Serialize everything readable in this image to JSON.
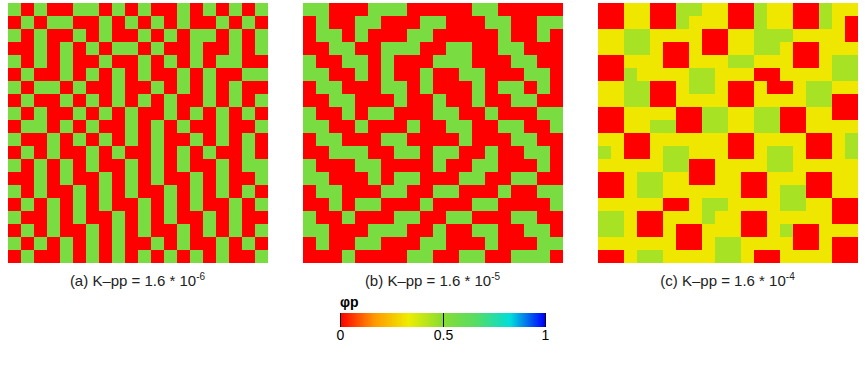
{
  "chart_data": [
    {
      "type": "heatmap",
      "title": "(a) K–pp = 1.6 * 10",
      "title_superscript": "-6",
      "cells": [
        [
          0.55,
          0,
          0.55,
          0,
          0,
          0.55,
          0.55,
          0,
          0.55,
          0,
          0.55,
          0,
          0,
          0.55,
          0,
          0.55,
          0,
          0.55,
          0,
          0.55
        ],
        [
          0,
          0.55,
          0,
          0.55,
          0.55,
          0,
          0,
          0.55,
          0,
          0.55,
          0,
          0.55,
          0,
          0.55,
          0,
          0,
          0.55,
          0,
          0.55,
          0
        ],
        [
          0.55,
          0,
          0.55,
          0,
          0,
          0.55,
          0,
          0.55,
          0,
          0,
          0.55,
          0,
          0.55,
          0,
          0.55,
          0.55,
          0,
          0.55,
          0,
          0.55
        ],
        [
          0,
          0,
          0.55,
          0,
          0.55,
          0,
          0.55,
          0,
          0.55,
          0.55,
          0,
          0.55,
          0,
          0,
          0.55,
          0,
          0,
          0.55,
          0,
          0.55
        ],
        [
          0.55,
          0,
          0.55,
          0,
          0.55,
          0,
          0,
          0.55,
          0,
          0,
          0.55,
          0,
          0.55,
          0,
          0.55,
          0,
          0.55,
          0.55,
          0,
          0
        ],
        [
          0,
          0.55,
          0,
          0,
          0.55,
          0,
          0.55,
          0,
          0.55,
          0,
          0.55,
          0,
          0,
          0.55,
          0,
          0.55,
          0,
          0,
          0.55,
          0.55
        ],
        [
          0.55,
          0,
          0.55,
          0.55,
          0,
          0.55,
          0,
          0,
          0.55,
          0,
          0,
          0.55,
          0,
          0.55,
          0,
          0.55,
          0,
          0.55,
          0,
          0
        ],
        [
          0,
          0.55,
          0,
          0,
          0.55,
          0,
          0.55,
          0,
          0.55,
          0,
          0.55,
          0,
          0.55,
          0,
          0,
          0.55,
          0,
          0.55,
          0,
          0.55
        ],
        [
          0.55,
          0,
          0.55,
          0,
          0,
          0.55,
          0,
          0.55,
          0,
          0.55,
          0,
          0,
          0.55,
          0,
          0.55,
          0,
          0.55,
          0,
          0.55,
          0
        ],
        [
          0,
          0.55,
          0.55,
          0,
          0.55,
          0,
          0.55,
          0,
          0,
          0.55,
          0,
          0.55,
          0,
          0.55,
          0,
          0,
          0.55,
          0,
          0,
          0.55
        ],
        [
          0.55,
          0,
          0,
          0.55,
          0,
          0.55,
          0,
          0.55,
          0,
          0.55,
          0,
          0.55,
          0,
          0,
          0.55,
          0,
          0.55,
          0,
          0.55,
          0
        ],
        [
          0,
          0.55,
          0,
          0.55,
          0,
          0,
          0.55,
          0,
          0.55,
          0,
          0,
          0.55,
          0,
          0.55,
          0,
          0.55,
          0,
          0,
          0.55,
          0
        ],
        [
          0.55,
          0,
          0.55,
          0,
          0.55,
          0,
          0.55,
          0,
          0,
          0.55,
          0,
          0.55,
          0,
          0.55,
          0,
          0,
          0.55,
          0,
          0.55,
          0.55
        ],
        [
          0,
          0,
          0.55,
          0,
          0.55,
          0,
          0,
          0.55,
          0,
          0.55,
          0,
          0.55,
          0,
          0,
          0.55,
          0,
          0.55,
          0,
          0,
          0.55
        ],
        [
          0.55,
          0,
          0.55,
          0,
          0,
          0.55,
          0,
          0.55,
          0,
          0.55,
          0,
          0,
          0.55,
          0,
          0.55,
          0,
          0.55,
          0,
          0.55,
          0
        ],
        [
          0,
          0.55,
          0,
          0.55,
          0,
          0.55,
          0,
          0.55,
          0,
          0,
          0.55,
          0,
          0.55,
          0,
          0.55,
          0,
          0,
          0.55,
          0,
          0.55
        ],
        [
          0.55,
          0,
          0,
          0.55,
          0,
          0.55,
          0,
          0,
          0.55,
          0,
          0.55,
          0,
          0.55,
          0,
          0,
          0.55,
          0,
          0.55,
          0,
          0
        ],
        [
          0,
          0.55,
          0,
          0.55,
          0,
          0,
          0.55,
          0,
          0.55,
          0,
          0.55,
          0,
          0,
          0.55,
          0,
          0.55,
          0,
          0.55,
          0,
          0.55
        ],
        [
          0.55,
          0,
          0.55,
          0,
          0.55,
          0,
          0.55,
          0,
          0.55,
          0,
          0,
          0.55,
          0,
          0.55,
          0,
          0,
          0.55,
          0,
          0.55,
          0
        ],
        [
          0,
          0.55,
          0,
          0,
          0.55,
          0,
          0.55,
          0,
          0.55,
          0,
          0.55,
          0,
          0.55,
          0,
          0.55,
          0,
          0.55,
          0,
          0,
          0.55
        ]
      ]
    },
    {
      "type": "heatmap",
      "title": "(b) K–pp = 1.6 * 10",
      "title_superscript": "-5",
      "cells": [
        [
          0.55,
          0.55,
          0,
          0,
          0,
          0.55,
          0.55,
          0.55,
          0,
          0,
          0,
          0,
          0,
          0.55,
          0.55,
          0,
          0,
          0,
          0,
          0
        ],
        [
          0,
          0.55,
          0,
          0,
          0.55,
          0.55,
          0,
          0,
          0,
          0.55,
          0.55,
          0,
          0,
          0,
          0.55,
          0.55,
          0,
          0,
          0.55,
          0.55
        ],
        [
          0,
          0.55,
          0.55,
          0,
          0.55,
          0,
          0,
          0,
          0.55,
          0.55,
          0,
          0,
          0,
          0,
          0,
          0.55,
          0,
          0,
          0.55,
          0
        ],
        [
          0,
          0,
          0.55,
          0.55,
          0,
          0,
          0.55,
          0.55,
          0.55,
          0,
          0,
          0.55,
          0.55,
          0,
          0,
          0.55,
          0.55,
          0,
          0,
          0
        ],
        [
          0.55,
          0,
          0,
          0.55,
          0.55,
          0,
          0.55,
          0,
          0,
          0,
          0.55,
          0.55,
          0.55,
          0,
          0,
          0,
          0.55,
          0.55,
          0,
          0
        ],
        [
          0.55,
          0.55,
          0,
          0,
          0.55,
          0,
          0.55,
          0,
          0,
          0.55,
          0,
          0,
          0.55,
          0.55,
          0,
          0,
          0,
          0.55,
          0.55,
          0
        ],
        [
          0,
          0.55,
          0.55,
          0,
          0,
          0,
          0.55,
          0.55,
          0,
          0.55,
          0,
          0,
          0,
          0.55,
          0,
          0.55,
          0.55,
          0,
          0.55,
          0
        ],
        [
          0,
          0,
          0.55,
          0.55,
          0,
          0,
          0,
          0.55,
          0,
          0,
          0.55,
          0,
          0,
          0.55,
          0,
          0,
          0.55,
          0.55,
          0,
          0
        ],
        [
          0.55,
          0,
          0,
          0.55,
          0,
          0.55,
          0.55,
          0,
          0,
          0,
          0.55,
          0.55,
          0,
          0,
          0.55,
          0,
          0,
          0,
          0.55,
          0.55
        ],
        [
          0.55,
          0.55,
          0,
          0,
          0.55,
          0,
          0,
          0,
          0.55,
          0,
          0,
          0.55,
          0.55,
          0,
          0,
          0.55,
          0.55,
          0,
          0,
          0.55
        ],
        [
          0,
          0.55,
          0.55,
          0,
          0,
          0,
          0.55,
          0.55,
          0,
          0,
          0,
          0,
          0.55,
          0,
          0,
          0,
          0.55,
          0.55,
          0,
          0
        ],
        [
          0,
          0,
          0.55,
          0.55,
          0.55,
          0,
          0,
          0.55,
          0.55,
          0,
          0.55,
          0.55,
          0,
          0,
          0.55,
          0,
          0,
          0.55,
          0.55,
          0
        ],
        [
          0.55,
          0,
          0,
          0,
          0.55,
          0.55,
          0,
          0,
          0,
          0,
          0.55,
          0,
          0,
          0.55,
          0.55,
          0,
          0,
          0,
          0.55,
          0
        ],
        [
          0.55,
          0.55,
          0,
          0,
          0,
          0.55,
          0,
          0.55,
          0.55,
          0,
          0,
          0,
          0.55,
          0.55,
          0,
          0,
          0.55,
          0.55,
          0,
          0
        ],
        [
          0,
          0.55,
          0.55,
          0,
          0,
          0,
          0.55,
          0.55,
          0,
          0,
          0.55,
          0.55,
          0,
          0,
          0,
          0.55,
          0,
          0,
          0.55,
          0.55
        ],
        [
          0,
          0,
          0.55,
          0,
          0.55,
          0.55,
          0,
          0,
          0,
          0.55,
          0,
          0,
          0,
          0.55,
          0.55,
          0,
          0,
          0,
          0,
          0.55
        ],
        [
          0.55,
          0,
          0,
          0.55,
          0,
          0,
          0,
          0.55,
          0.55,
          0,
          0,
          0.55,
          0.55,
          0,
          0,
          0,
          0.55,
          0.55,
          0,
          0
        ],
        [
          0.55,
          0.55,
          0,
          0,
          0,
          0.55,
          0.55,
          0.55,
          0,
          0,
          0.55,
          0,
          0,
          0.55,
          0.55,
          0,
          0,
          0.55,
          0.55,
          0
        ],
        [
          0,
          0.55,
          0,
          0,
          0.55,
          0.55,
          0,
          0,
          0,
          0.55,
          0.55,
          0,
          0,
          0,
          0.55,
          0,
          0,
          0,
          0.55,
          0.55
        ],
        [
          0,
          0,
          0,
          0.55,
          0,
          0,
          0,
          0,
          0.55,
          0.55,
          0,
          0,
          0.55,
          0.55,
          0,
          0,
          0.55,
          0.55,
          0.55,
          0
        ]
      ]
    },
    {
      "type": "heatmap",
      "title": "(c) K–pp = 1.6 * 10",
      "title_superscript": "-4",
      "cells": [
        [
          0,
          0,
          0.32,
          0.32,
          0,
          0,
          0.45,
          0.45,
          0.32,
          0.32,
          0,
          0,
          0.45,
          0.32,
          0.32,
          0,
          0,
          0.45,
          0.32,
          0.32
        ],
        [
          0,
          0,
          0.32,
          0.32,
          0,
          0,
          0.45,
          0.32,
          0.32,
          0.32,
          0,
          0,
          0.45,
          0.32,
          0.32,
          0,
          0,
          0.45,
          0.32,
          0
        ],
        [
          0.32,
          0.32,
          0.45,
          0.45,
          0.32,
          0.32,
          0.32,
          0.32,
          0,
          0,
          0.32,
          0.32,
          0.45,
          0.45,
          0.45,
          0.32,
          0.32,
          0.32,
          0.32,
          0
        ],
        [
          0.32,
          0.32,
          0.45,
          0.45,
          0.32,
          0,
          0,
          0.32,
          0,
          0,
          0.32,
          0.32,
          0.45,
          0.45,
          0.32,
          0,
          0,
          0.32,
          0.32,
          0.32
        ],
        [
          0,
          0,
          0.32,
          0.32,
          0.32,
          0,
          0,
          0.32,
          0.32,
          0.32,
          0.45,
          0.45,
          0.32,
          0.32,
          0.32,
          0,
          0,
          0.32,
          0.45,
          0.45
        ],
        [
          0,
          0,
          0.45,
          0.32,
          0.32,
          0.32,
          0.32,
          0.45,
          0.45,
          0.32,
          0.32,
          0.32,
          0,
          0,
          0.32,
          0.32,
          0.32,
          0.32,
          0.45,
          0.45
        ],
        [
          0.32,
          0.32,
          0.45,
          0.45,
          0,
          0,
          0.32,
          0.45,
          0.45,
          0.32,
          0,
          0,
          0.32,
          0,
          0,
          0.32,
          0.45,
          0.45,
          0.32,
          0.32
        ],
        [
          0.32,
          0.32,
          0.45,
          0.45,
          0,
          0,
          0.32,
          0.32,
          0.32,
          0.32,
          0,
          0,
          0.32,
          0.32,
          0.32,
          0.32,
          0.45,
          0.45,
          0,
          0
        ],
        [
          0,
          0,
          0.32,
          0.32,
          0.32,
          0.32,
          0,
          0,
          0.45,
          0.45,
          0.32,
          0.32,
          0.45,
          0.45,
          0,
          0,
          0.32,
          0.32,
          0,
          0
        ],
        [
          0,
          0,
          0.32,
          0.32,
          0.45,
          0.45,
          0,
          0,
          0.45,
          0.45,
          0.32,
          0.32,
          0.45,
          0.45,
          0,
          0,
          0.32,
          0.32,
          0.32,
          0.32
        ],
        [
          0.32,
          0.32,
          0,
          0,
          0.32,
          0.32,
          0.32,
          0.32,
          0.32,
          0.32,
          0,
          0,
          0.32,
          0.32,
          0.32,
          0.32,
          0,
          0,
          0.32,
          0.45
        ],
        [
          0.45,
          0.32,
          0,
          0,
          0.32,
          0.45,
          0.45,
          0.32,
          0.32,
          0.32,
          0,
          0,
          0.32,
          0.45,
          0.45,
          0.32,
          0,
          0,
          0.32,
          0.45
        ],
        [
          0.32,
          0.32,
          0.32,
          0.32,
          0.32,
          0.45,
          0.45,
          0,
          0,
          0.32,
          0.32,
          0.32,
          0.32,
          0.45,
          0.45,
          0.32,
          0.32,
          0.32,
          0.32,
          0.32
        ],
        [
          0,
          0,
          0.32,
          0.45,
          0.45,
          0.32,
          0.32,
          0,
          0,
          0.32,
          0.32,
          0,
          0,
          0.32,
          0.32,
          0.32,
          0,
          0,
          0.32,
          0.32
        ],
        [
          0,
          0,
          0.32,
          0.45,
          0.45,
          0.32,
          0.32,
          0.32,
          0.32,
          0.32,
          0.32,
          0,
          0,
          0.32,
          0.45,
          0.45,
          0,
          0,
          0.32,
          0.32
        ],
        [
          0.32,
          0.32,
          0.32,
          0.32,
          0.32,
          0,
          0,
          0.32,
          0.45,
          0.45,
          0.32,
          0.32,
          0.32,
          0.32,
          0.45,
          0.45,
          0.32,
          0.32,
          0,
          0
        ],
        [
          0.45,
          0.45,
          0.32,
          0,
          0,
          0.32,
          0.32,
          0.32,
          0.45,
          0.32,
          0.32,
          0,
          0,
          0.32,
          0.32,
          0.32,
          0.32,
          0.32,
          0,
          0
        ],
        [
          0.45,
          0.45,
          0.32,
          0,
          0,
          0.32,
          0,
          0,
          0.32,
          0.32,
          0.32,
          0,
          0,
          0.32,
          0.45,
          0,
          0,
          0.32,
          0.32,
          0.32
        ],
        [
          0.32,
          0.32,
          0.32,
          0.32,
          0.32,
          0.32,
          0,
          0,
          0.32,
          0.45,
          0.45,
          0.32,
          0.32,
          0.32,
          0.32,
          0,
          0,
          0.32,
          0,
          0
        ],
        [
          0,
          0,
          0.32,
          0.45,
          0.45,
          0.32,
          0.32,
          0.32,
          0.32,
          0.45,
          0.45,
          0.32,
          0,
          0,
          0.32,
          0.32,
          0.32,
          0.32,
          0,
          0
        ]
      ]
    }
  ],
  "colorbar": {
    "label": "φp",
    "range": [
      0,
      1
    ],
    "ticks": [
      0,
      0.5,
      1
    ]
  }
}
